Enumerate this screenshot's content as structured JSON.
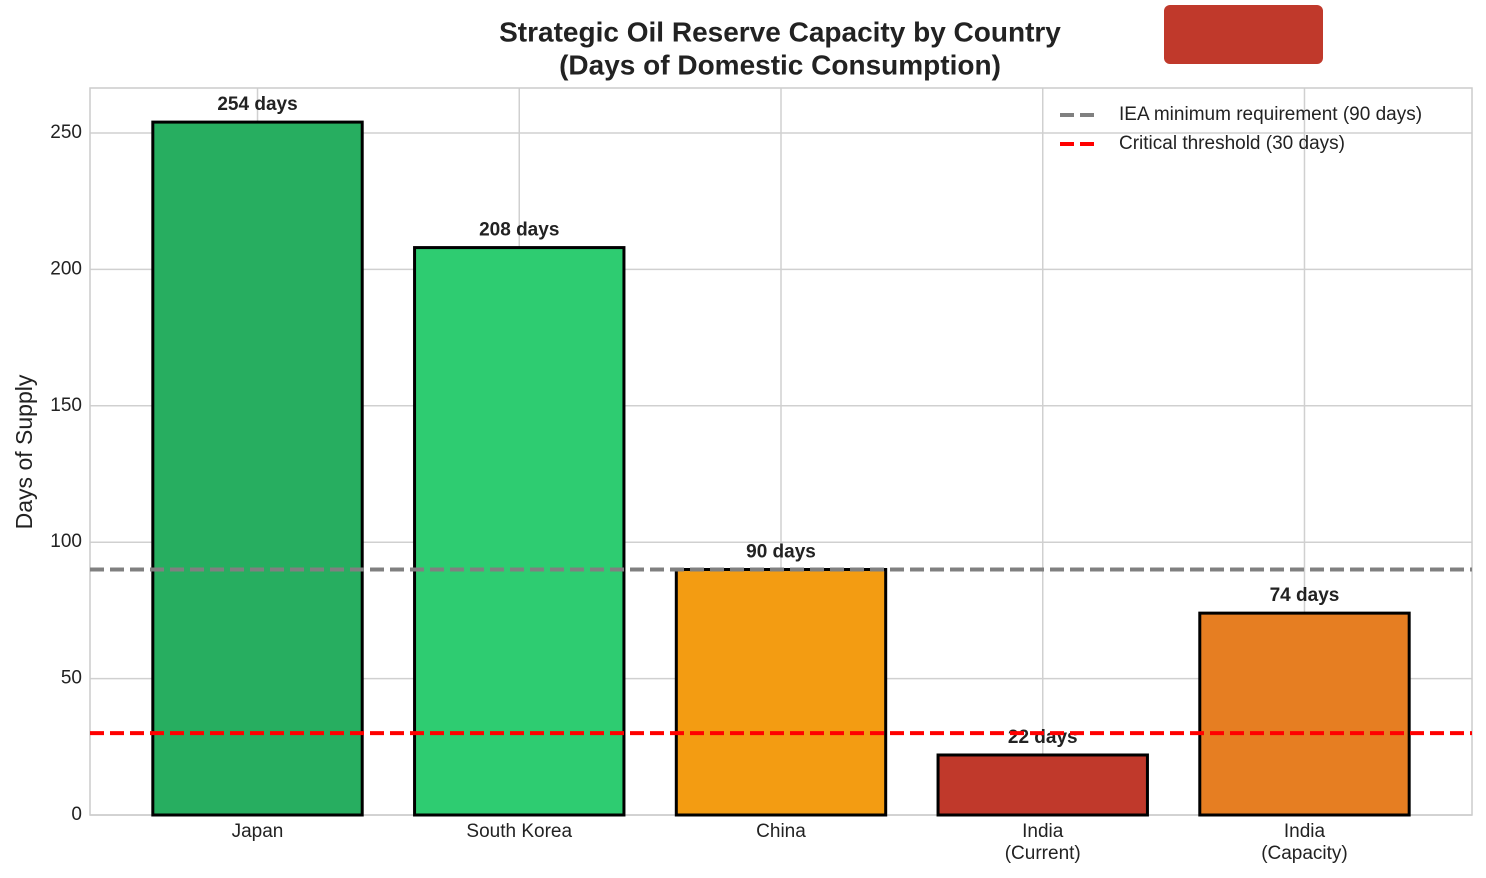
{
  "chart_data": {
    "type": "bar",
    "title": "Strategic Oil Reserve Capacity by Country",
    "subtitle": "(Days of Domestic Consumption)",
    "y_label": "Days of Supply",
    "categories": [
      "Japan",
      "South Korea",
      "China",
      "India\n(Current)",
      "India\n(Capacity)"
    ],
    "values": [
      254,
      208,
      90,
      22,
      74
    ],
    "value_labels": [
      "254 days",
      "208 days",
      "90 days",
      "22 days",
      "74 days"
    ],
    "colors": [
      "#27ae60",
      "#2ecc71",
      "#f39c12",
      "#c0392b",
      "#e67e22"
    ],
    "ylim": [
      0,
      266.5
    ],
    "yticks": [
      0,
      50,
      100,
      150,
      200,
      250
    ],
    "grid": true,
    "reference_lines": [
      {
        "name": "IEA minimum requirement (90 days)",
        "value": 90,
        "color": "#808080"
      },
      {
        "name": "Critical threshold (30 days)",
        "value": 30,
        "color": "#ff0000"
      }
    ],
    "legend": "upper right"
  }
}
